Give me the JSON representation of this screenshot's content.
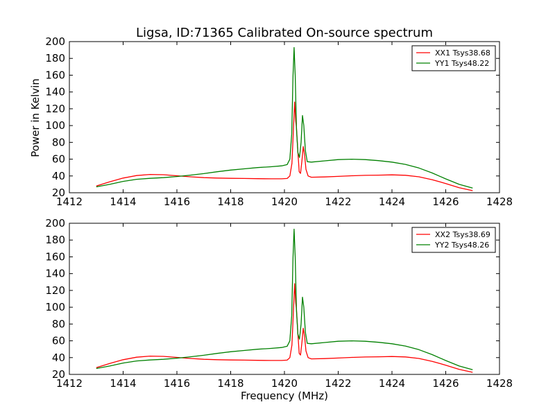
{
  "title": "Ligsa, ID:71365 Calibrated On-source spectrum",
  "ylabel": "Power in Kelvin",
  "xlabel": "Frequency (MHz)",
  "chart_data": [
    {
      "type": "line",
      "title": "Ligsa, ID:71365 Calibrated On-source spectrum",
      "xlabel": "",
      "ylabel": "Power in Kelvin",
      "xlim": [
        1412,
        1428
      ],
      "ylim": [
        20,
        200
      ],
      "xticks": [
        1412,
        1414,
        1416,
        1418,
        1420,
        1422,
        1424,
        1426,
        1428
      ],
      "yticks": [
        20,
        40,
        60,
        80,
        100,
        120,
        140,
        160,
        180,
        200
      ],
      "grid": false,
      "legend_position": "top-right",
      "series": [
        {
          "name": "XX1 Tsys38.68",
          "color": "#ff0000",
          "points": [
            [
              1413.0,
              28
            ],
            [
              1413.5,
              33
            ],
            [
              1414.0,
              37.5
            ],
            [
              1414.5,
              40.5
            ],
            [
              1415.0,
              41.8
            ],
            [
              1415.5,
              41.5
            ],
            [
              1416.0,
              40.2
            ],
            [
              1416.5,
              39
            ],
            [
              1417.0,
              38
            ],
            [
              1417.5,
              37.5
            ],
            [
              1418.0,
              37.2
            ],
            [
              1418.5,
              37
            ],
            [
              1419.0,
              36.8
            ],
            [
              1419.5,
              36.6
            ],
            [
              1419.9,
              36.6
            ],
            [
              1420.1,
              37
            ],
            [
              1420.2,
              40
            ],
            [
              1420.28,
              55
            ],
            [
              1420.34,
              100
            ],
            [
              1420.38,
              128
            ],
            [
              1420.42,
              105
            ],
            [
              1420.45,
              97
            ],
            [
              1420.5,
              68
            ],
            [
              1420.55,
              45
            ],
            [
              1420.6,
              43
            ],
            [
              1420.65,
              58
            ],
            [
              1420.7,
              75
            ],
            [
              1420.75,
              65
            ],
            [
              1420.8,
              48
            ],
            [
              1420.88,
              40
            ],
            [
              1421.0,
              38.5
            ],
            [
              1421.5,
              38.8
            ],
            [
              1422.0,
              39.5
            ],
            [
              1422.5,
              40.2
            ],
            [
              1423.0,
              40.7
            ],
            [
              1423.5,
              41
            ],
            [
              1424.0,
              41.3
            ],
            [
              1424.5,
              40.8
            ],
            [
              1425.0,
              39
            ],
            [
              1425.5,
              35.5
            ],
            [
              1426.0,
              31
            ],
            [
              1426.5,
              26
            ],
            [
              1427.0,
              22.5
            ]
          ]
        },
        {
          "name": "YY1 Tsys48.22",
          "color": "#008000",
          "points": [
            [
              1413.0,
              27
            ],
            [
              1413.5,
              30
            ],
            [
              1414.0,
              33.5
            ],
            [
              1414.5,
              36
            ],
            [
              1415.0,
              37.2
            ],
            [
              1415.5,
              38
            ],
            [
              1416.0,
              39.3
            ],
            [
              1416.5,
              41
            ],
            [
              1417.0,
              42.8
            ],
            [
              1417.5,
              45
            ],
            [
              1418.0,
              47
            ],
            [
              1418.5,
              48.5
            ],
            [
              1419.0,
              50
            ],
            [
              1419.5,
              51
            ],
            [
              1419.9,
              52
            ],
            [
              1420.1,
              53.5
            ],
            [
              1420.2,
              60
            ],
            [
              1420.27,
              90
            ],
            [
              1420.32,
              160
            ],
            [
              1420.36,
              193
            ],
            [
              1420.4,
              160
            ],
            [
              1420.45,
              95
            ],
            [
              1420.5,
              68
            ],
            [
              1420.56,
              62
            ],
            [
              1420.62,
              80
            ],
            [
              1420.67,
              112
            ],
            [
              1420.72,
              100
            ],
            [
              1420.78,
              70
            ],
            [
              1420.85,
              57
            ],
            [
              1421.0,
              56.5
            ],
            [
              1421.5,
              58
            ],
            [
              1422.0,
              59.5
            ],
            [
              1422.5,
              60
            ],
            [
              1423.0,
              59.5
            ],
            [
              1423.5,
              58.2
            ],
            [
              1424.0,
              56.5
            ],
            [
              1424.5,
              53.8
            ],
            [
              1425.0,
              49.5
            ],
            [
              1425.5,
              43.5
            ],
            [
              1426.0,
              36.5
            ],
            [
              1426.5,
              30
            ],
            [
              1427.0,
              25.5
            ]
          ]
        }
      ]
    },
    {
      "type": "line",
      "title": "",
      "xlabel": "Frequency (MHz)",
      "ylabel": "",
      "xlim": [
        1412,
        1428
      ],
      "ylim": [
        20,
        200
      ],
      "xticks": [
        1412,
        1414,
        1416,
        1418,
        1420,
        1422,
        1424,
        1426,
        1428
      ],
      "yticks": [
        20,
        40,
        60,
        80,
        100,
        120,
        140,
        160,
        180,
        200
      ],
      "grid": false,
      "legend_position": "top-right",
      "series": [
        {
          "name": "XX2 Tsys38.69",
          "color": "#ff0000",
          "points": [
            [
              1413.0,
              28
            ],
            [
              1413.5,
              33
            ],
            [
              1414.0,
              37.5
            ],
            [
              1414.5,
              40.5
            ],
            [
              1415.0,
              41.8
            ],
            [
              1415.5,
              41.5
            ],
            [
              1416.0,
              40.2
            ],
            [
              1416.5,
              39
            ],
            [
              1417.0,
              38
            ],
            [
              1417.5,
              37.5
            ],
            [
              1418.0,
              37.2
            ],
            [
              1418.5,
              37
            ],
            [
              1419.0,
              36.8
            ],
            [
              1419.5,
              36.6
            ],
            [
              1419.9,
              36.6
            ],
            [
              1420.1,
              37
            ],
            [
              1420.2,
              40
            ],
            [
              1420.28,
              55
            ],
            [
              1420.34,
              100
            ],
            [
              1420.38,
              128
            ],
            [
              1420.42,
              105
            ],
            [
              1420.45,
              97
            ],
            [
              1420.5,
              68
            ],
            [
              1420.55,
              45
            ],
            [
              1420.6,
              43
            ],
            [
              1420.65,
              58
            ],
            [
              1420.7,
              75
            ],
            [
              1420.75,
              65
            ],
            [
              1420.8,
              48
            ],
            [
              1420.88,
              40
            ],
            [
              1421.0,
              38.5
            ],
            [
              1421.5,
              38.8
            ],
            [
              1422.0,
              39.5
            ],
            [
              1422.5,
              40.2
            ],
            [
              1423.0,
              40.7
            ],
            [
              1423.5,
              41
            ],
            [
              1424.0,
              41.3
            ],
            [
              1424.5,
              40.8
            ],
            [
              1425.0,
              39
            ],
            [
              1425.5,
              35.5
            ],
            [
              1426.0,
              31
            ],
            [
              1426.5,
              26
            ],
            [
              1427.0,
              22.5
            ]
          ]
        },
        {
          "name": "YY2 Tsys48.26",
          "color": "#008000",
          "points": [
            [
              1413.0,
              27
            ],
            [
              1413.5,
              30
            ],
            [
              1414.0,
              33.5
            ],
            [
              1414.5,
              36
            ],
            [
              1415.0,
              37.2
            ],
            [
              1415.5,
              38
            ],
            [
              1416.0,
              39.3
            ],
            [
              1416.5,
              41
            ],
            [
              1417.0,
              42.8
            ],
            [
              1417.5,
              45
            ],
            [
              1418.0,
              47
            ],
            [
              1418.5,
              48.5
            ],
            [
              1419.0,
              50
            ],
            [
              1419.5,
              51
            ],
            [
              1419.9,
              52
            ],
            [
              1420.1,
              53.5
            ],
            [
              1420.2,
              60
            ],
            [
              1420.27,
              90
            ],
            [
              1420.32,
              160
            ],
            [
              1420.36,
              193
            ],
            [
              1420.4,
              160
            ],
            [
              1420.45,
              95
            ],
            [
              1420.5,
              68
            ],
            [
              1420.56,
              62
            ],
            [
              1420.62,
              80
            ],
            [
              1420.67,
              112
            ],
            [
              1420.72,
              100
            ],
            [
              1420.78,
              70
            ],
            [
              1420.85,
              57
            ],
            [
              1421.0,
              56.5
            ],
            [
              1421.5,
              58
            ],
            [
              1422.0,
              59.5
            ],
            [
              1422.5,
              60
            ],
            [
              1423.0,
              59.5
            ],
            [
              1423.5,
              58.2
            ],
            [
              1424.0,
              56.5
            ],
            [
              1424.5,
              53.8
            ],
            [
              1425.0,
              49.5
            ],
            [
              1425.5,
              43.5
            ],
            [
              1426.0,
              36.5
            ],
            [
              1426.5,
              30
            ],
            [
              1427.0,
              25.5
            ]
          ]
        }
      ]
    }
  ]
}
